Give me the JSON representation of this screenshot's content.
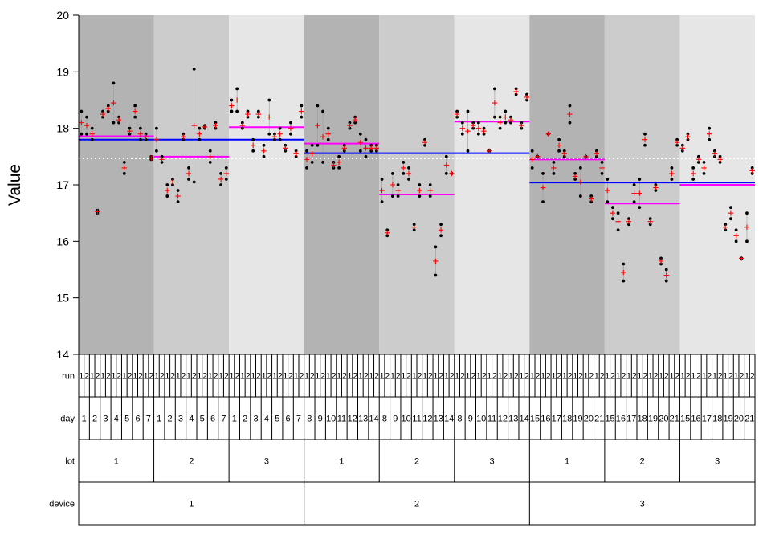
{
  "chart_data": {
    "type": "scatter",
    "title": "",
    "ylabel": "Value",
    "ylim": [
      14,
      20
    ],
    "yticks": [
      14,
      15,
      16,
      17,
      18,
      19,
      20
    ],
    "grand_mean": 17.47,
    "row_labels": [
      "run",
      "day",
      "lot",
      "device"
    ],
    "run_labels": [
      "1",
      "2"
    ],
    "device_labels": [
      "1",
      "2",
      "3"
    ],
    "lot_labels": [
      "1",
      "2",
      "3"
    ],
    "devices": [
      {
        "label": "1",
        "mean": 17.8,
        "days": [
          "1",
          "2",
          "3",
          "4",
          "5",
          "6",
          "7"
        ],
        "lots": [
          {
            "label": "1",
            "mean": 17.86,
            "runs": [
              [
                17.9,
                18.3
              ],
              [
                18.2,
                17.9
              ],
              [
                17.8,
                18.0
              ],
              [
                16.5,
                16.55
              ],
              [
                18.3,
                18.2
              ],
              [
                18.4,
                18.3
              ],
              [
                18.1,
                18.8
              ],
              [
                18.1,
                18.2
              ],
              [
                17.2,
                17.4
              ],
              [
                18.0,
                17.9
              ],
              [
                18.4,
                18.2
              ],
              [
                18.0,
                17.8
              ],
              [
                17.8,
                17.9
              ],
              [
                17.45,
                17.5
              ]
            ]
          },
          {
            "label": "2",
            "mean": 17.5,
            "runs": [
              [
                18.0,
                17.6
              ],
              [
                17.4,
                17.5
              ],
              [
                16.8,
                17.0
              ],
              [
                17.0,
                17.1
              ],
              [
                16.9,
                16.7
              ],
              [
                17.8,
                17.9
              ],
              [
                17.1,
                17.3
              ],
              [
                19.05,
                17.05
              ],
              [
                18.0,
                17.8
              ],
              [
                18.0,
                18.05
              ],
              [
                17.4,
                17.6
              ],
              [
                18.1,
                18.0
              ],
              [
                17.2,
                17.0
              ],
              [
                17.1,
                17.3
              ]
            ]
          },
          {
            "label": "3",
            "mean": 18.02,
            "runs": [
              [
                18.3,
                18.5
              ],
              [
                18.7,
                18.3
              ],
              [
                18.1,
                18.0
              ],
              [
                18.2,
                18.3
              ],
              [
                17.6,
                17.8
              ],
              [
                18.3,
                18.2
              ],
              [
                17.7,
                17.5
              ],
              [
                18.5,
                17.9
              ],
              [
                17.8,
                17.9
              ],
              [
                18.0,
                17.8
              ],
              [
                17.7,
                17.6
              ],
              [
                18.1,
                17.9
              ],
              [
                17.6,
                17.5
              ],
              [
                18.4,
                18.2
              ]
            ]
          }
        ]
      },
      {
        "label": "2",
        "mean": 17.56,
        "days": [
          "8",
          "9",
          "10",
          "11",
          "12",
          "13",
          "14"
        ],
        "lots": [
          {
            "label": "1",
            "mean": 17.73,
            "runs": [
              [
                17.6,
                17.3
              ],
              [
                17.7,
                17.4
              ],
              [
                18.4,
                17.7
              ],
              [
                18.3,
                17.4
              ],
              [
                18.0,
                17.8
              ],
              [
                17.4,
                17.3
              ],
              [
                17.5,
                17.3
              ],
              [
                17.7,
                17.6
              ],
              [
                18.1,
                18.0
              ],
              [
                18.2,
                18.1
              ],
              [
                17.9,
                17.6
              ],
              [
                17.8,
                17.5
              ],
              [
                17.7,
                17.6
              ],
              [
                17.7,
                17.6
              ]
            ]
          },
          {
            "label": "2",
            "mean": 16.83,
            "runs": [
              [
                17.1,
                16.7
              ],
              [
                16.2,
                16.1
              ],
              [
                17.2,
                16.8
              ],
              [
                17.0,
                16.8
              ],
              [
                17.4,
                17.2
              ],
              [
                17.3,
                17.1
              ],
              [
                16.3,
                16.2
              ],
              [
                17.0,
                16.8
              ],
              [
                17.8,
                17.7
              ],
              [
                17.0,
                16.8
              ],
              [
                15.4,
                15.9
              ],
              [
                16.3,
                16.1
              ],
              [
                17.5,
                17.2
              ],
              [
                17.2,
                17.2
              ]
            ]
          },
          {
            "label": "3",
            "mean": 18.12,
            "runs": [
              [
                18.3,
                18.2
              ],
              [
                18.1,
                17.9
              ],
              [
                18.3,
                17.6
              ],
              [
                18.0,
                18.1
              ],
              [
                18.1,
                17.9
              ],
              [
                18.0,
                17.9
              ],
              [
                17.6,
                17.6
              ],
              [
                18.7,
                18.2
              ],
              [
                18.0,
                18.2
              ],
              [
                18.3,
                18.1
              ],
              [
                18.2,
                18.1
              ],
              [
                18.7,
                18.6
              ],
              [
                18.1,
                18.0
              ],
              [
                18.6,
                18.5
              ]
            ]
          }
        ]
      },
      {
        "label": "3",
        "mean": 17.04,
        "days": [
          "15",
          "16",
          "17",
          "18",
          "19",
          "20",
          "21"
        ],
        "lots": [
          {
            "label": "1",
            "mean": 17.45,
            "runs": [
              [
                17.6,
                17.3
              ],
              [
                17.5,
                17.5
              ],
              [
                17.2,
                16.7
              ],
              [
                17.9,
                17.9
              ],
              [
                17.4,
                17.2
              ],
              [
                17.8,
                17.6
              ],
              [
                17.6,
                17.5
              ],
              [
                18.1,
                18.4
              ],
              [
                17.1,
                17.2
              ],
              [
                17.3,
                16.8
              ],
              [
                17.5,
                17.5
              ],
              [
                16.7,
                16.8
              ],
              [
                17.6,
                17.5
              ],
              [
                17.4,
                17.2
              ]
            ]
          },
          {
            "label": "2",
            "mean": 16.67,
            "runs": [
              [
                17.1,
                16.7
              ],
              [
                16.6,
                16.4
              ],
              [
                16.5,
                16.2
              ],
              [
                15.6,
                15.3
              ],
              [
                16.3,
                16.4
              ],
              [
                17.0,
                16.7
              ],
              [
                17.1,
                16.6
              ],
              [
                17.9,
                17.7
              ],
              [
                16.3,
                16.4
              ],
              [
                16.9,
                17.0
              ],
              [
                15.7,
                15.6
              ],
              [
                15.5,
                15.3
              ],
              [
                17.1,
                17.3
              ],
              [
                17.8,
                17.7
              ]
            ]
          },
          {
            "label": "3",
            "mean": 17.0,
            "runs": [
              [
                17.7,
                17.6
              ],
              [
                17.8,
                17.9
              ],
              [
                17.3,
                17.1
              ],
              [
                17.5,
                17.4
              ],
              [
                17.4,
                17.2
              ],
              [
                18.0,
                17.8
              ],
              [
                17.6,
                17.5
              ],
              [
                17.5,
                17.4
              ],
              [
                16.2,
                16.3
              ],
              [
                16.4,
                16.6
              ],
              [
                16.0,
                16.2
              ],
              [
                15.7,
                15.7
              ],
              [
                16.0,
                16.5
              ],
              [
                17.2,
                17.3
              ]
            ]
          }
        ]
      }
    ]
  }
}
